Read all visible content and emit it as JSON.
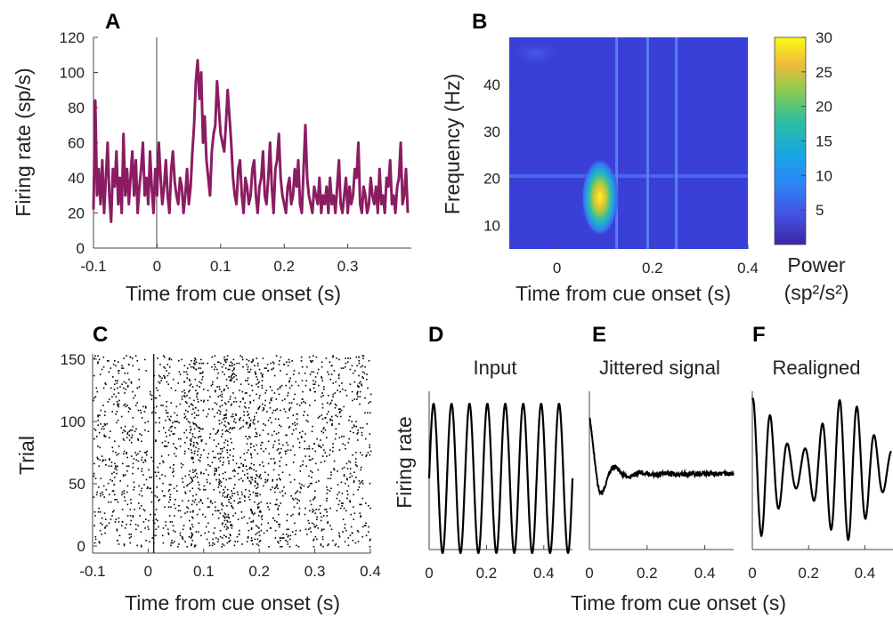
{
  "panels": {
    "A": {
      "label": "A"
    },
    "B": {
      "label": "B"
    },
    "C": {
      "label": "C"
    },
    "D": {
      "label": "D",
      "title": "Input"
    },
    "E": {
      "label": "E",
      "title": "Jittered signal"
    },
    "F": {
      "label": "F",
      "title": "Realigned"
    }
  },
  "colorbar": {
    "label_line1": "Power",
    "label_line2": "(sp²/s²)",
    "ticks": [
      "30",
      "25",
      "20",
      "15",
      "10",
      "5"
    ]
  },
  "shared_xlabel_DEF": "Time from cue onset (s)",
  "chart_data": [
    {
      "panel": "A",
      "type": "line",
      "xlabel": "Time from cue onset (s)",
      "ylabel": "Firing rate (sp/s)",
      "xlim": [
        -0.1,
        0.4
      ],
      "ylim": [
        0,
        120
      ],
      "xticks": [
        "-0.1",
        "0",
        "0.1",
        "0.2",
        "0.3"
      ],
      "yticks": [
        "0",
        "20",
        "40",
        "60",
        "80",
        "100",
        "120"
      ],
      "color": "#8b1c62",
      "series": [
        {
          "values": [
            22,
            84,
            30,
            45,
            25,
            50,
            20,
            40,
            60,
            30,
            15,
            45,
            35,
            55,
            25,
            40,
            20,
            65,
            30,
            45,
            25,
            40,
            55,
            30,
            50,
            20,
            35,
            45,
            60,
            30,
            40,
            25,
            55,
            35,
            20,
            45,
            30,
            60,
            40,
            25,
            35,
            50,
            30,
            20,
            45,
            55,
            38,
            30,
            25,
            40,
            35,
            20,
            30,
            45,
            25,
            35,
            55,
            70,
            95,
            107,
            85,
            100,
            60,
            75,
            50,
            40,
            30,
            55,
            65,
            70,
            95,
            80,
            65,
            60,
            55,
            70,
            90,
            75,
            60,
            40,
            30,
            25,
            45,
            50,
            30,
            20,
            40,
            35,
            25,
            30,
            45,
            50,
            30,
            20,
            35,
            40,
            55,
            30,
            25,
            40,
            60,
            35,
            20,
            45,
            50,
            65,
            40,
            30,
            25,
            20,
            35,
            40,
            25,
            30,
            45,
            35,
            50,
            25,
            20,
            45,
            70,
            40,
            30,
            25,
            20,
            35,
            30,
            25,
            40,
            20,
            30,
            25,
            35,
            20,
            40,
            25,
            30,
            20,
            35,
            50,
            25,
            20,
            30,
            40,
            20,
            35,
            25,
            30,
            45,
            40,
            60,
            25,
            20,
            35,
            30,
            20,
            25,
            40,
            30,
            25,
            35,
            20,
            45,
            25,
            30,
            20,
            40,
            35,
            50,
            25,
            30,
            20,
            35,
            40,
            60,
            25,
            30,
            45,
            20
          ]
        }
      ]
    },
    {
      "panel": "B",
      "type": "heatmap",
      "xlabel": "Time from cue onset (s)",
      "ylabel": "Frequency (Hz)",
      "xlim": [
        -0.1,
        0.4
      ],
      "ylim": [
        5,
        50
      ],
      "xticks": [
        "0",
        "0.2",
        "0.4"
      ],
      "yticks": [
        "10",
        "20",
        "30",
        "40"
      ],
      "clim": [
        0,
        30
      ],
      "peak": {
        "x": 0.09,
        "y": 16,
        "power": 30
      },
      "vertical_lines_x": [
        0.125,
        0.19,
        0.25
      ],
      "horizontal_line_y": 20.5
    },
    {
      "panel": "C",
      "type": "scatter",
      "xlabel": "Time from cue onset (s)",
      "ylabel": "Trial",
      "xlim": [
        -0.1,
        0.4
      ],
      "ylim": [
        0,
        155
      ],
      "xticks": [
        "-0.1",
        "0",
        "0.1",
        "0.2",
        "0.3",
        "0.4"
      ],
      "yticks": [
        "0",
        "50",
        "100",
        "150"
      ],
      "trials": 155,
      "cue_line_x": 0.01
    },
    {
      "panel": "D",
      "type": "line",
      "title": "Input",
      "ylabel": "Firing rate",
      "xlim": [
        0,
        0.5
      ],
      "xticks": [
        "0",
        "0.2",
        "0.4"
      ],
      "frequency_hz": 16
    },
    {
      "panel": "E",
      "type": "line",
      "title": "Jittered signal",
      "xlim": [
        0,
        0.5
      ],
      "xticks": [
        "0",
        "0.2",
        "0.4"
      ]
    },
    {
      "panel": "F",
      "type": "line",
      "title": "Realigned",
      "xlim": [
        0,
        0.5
      ],
      "xticks": [
        "0",
        "0.2",
        "0.4"
      ]
    }
  ]
}
